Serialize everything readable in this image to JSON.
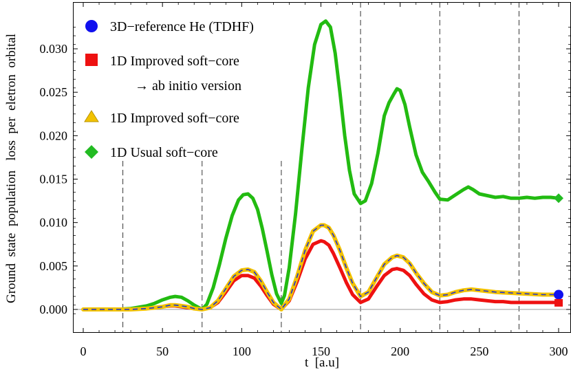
{
  "chart_data": {
    "type": "line",
    "title": "",
    "xlabel": "t  [a.u]",
    "ylabel": "Ground  state  population   loss  per  eletron  orbital",
    "xlim": [
      0,
      300
    ],
    "ylim": [
      -0.001,
      0.0335
    ],
    "x_ticks": [
      0,
      50,
      100,
      150,
      200,
      250,
      300
    ],
    "x_tick_labels": [
      "0",
      "50",
      "100",
      "150",
      "200",
      "250",
      "300"
    ],
    "y_ticks": [
      0.0,
      0.005,
      0.01,
      0.015,
      0.02,
      0.025,
      0.03
    ],
    "y_tick_labels": [
      "0.000",
      "0.005",
      "0.010",
      "0.015",
      "0.020",
      "0.025",
      "0.030"
    ],
    "vertical_dashed_lines_x": [
      25,
      75,
      125,
      175,
      225,
      275
    ],
    "legend": [
      {
        "label": "3D−reference He (TDHF)",
        "marker": "circle",
        "color": "#1010ee"
      },
      {
        "label": "1D Improved soft−core",
        "sublabel": "→ ab initio version",
        "marker": "square",
        "color": "#ee1111"
      },
      {
        "label": "1D Improved soft−core",
        "marker": "triangle",
        "color": "#f2c200"
      },
      {
        "label": "1D Usual soft−core",
        "marker": "diamond",
        "color": "#22bb22"
      }
    ],
    "series": [
      {
        "name": "1D Usual soft−core",
        "color": "#22bb11",
        "x": [
          0,
          20,
          30,
          40,
          45,
          50,
          55,
          58,
          62,
          66,
          70,
          75,
          78,
          82,
          86,
          90,
          94,
          98,
          101,
          104,
          107,
          110,
          113,
          116,
          119,
          122,
          125,
          127,
          130,
          134,
          138,
          142,
          146,
          150,
          153,
          156,
          159,
          162,
          165,
          168,
          171,
          175,
          178,
          182,
          186,
          190,
          193,
          196,
          198,
          200,
          203,
          206,
          210,
          214,
          218,
          222,
          225,
          230,
          235,
          240,
          243,
          246,
          250,
          255,
          260,
          265,
          270,
          275,
          280,
          285,
          290,
          295,
          300
        ],
        "y": [
          0,
          0,
          0.0001,
          0.0004,
          0.0007,
          0.0011,
          0.0014,
          0.0015,
          0.0014,
          0.001,
          0.0005,
          0.0,
          0.0006,
          0.0025,
          0.0052,
          0.0082,
          0.0108,
          0.0126,
          0.0132,
          0.0133,
          0.0128,
          0.0115,
          0.0093,
          0.0067,
          0.004,
          0.0018,
          0.0007,
          0.0016,
          0.0048,
          0.011,
          0.0185,
          0.0255,
          0.0305,
          0.0328,
          0.0332,
          0.0325,
          0.0295,
          0.025,
          0.02,
          0.016,
          0.0133,
          0.0122,
          0.0125,
          0.0145,
          0.018,
          0.0223,
          0.0238,
          0.0248,
          0.0254,
          0.0252,
          0.0236,
          0.021,
          0.0178,
          0.0158,
          0.0147,
          0.0135,
          0.0127,
          0.0126,
          0.0132,
          0.0138,
          0.0141,
          0.0138,
          0.0133,
          0.0131,
          0.0129,
          0.013,
          0.0128,
          0.0128,
          0.0129,
          0.0128,
          0.0129,
          0.0129,
          0.0128
        ]
      },
      {
        "name": "1D Improved soft−core",
        "color": "#f2c200",
        "x": [
          0,
          20,
          30,
          40,
          45,
          50,
          55,
          58,
          62,
          66,
          70,
          75,
          80,
          85,
          90,
          95,
          100,
          104,
          108,
          112,
          116,
          120,
          125,
          130,
          135,
          140,
          145,
          150,
          152,
          155,
          158,
          162,
          166,
          170,
          175,
          180,
          185,
          190,
          195,
          198,
          202,
          206,
          210,
          215,
          220,
          225,
          230,
          235,
          240,
          245,
          250,
          255,
          260,
          270,
          280,
          290,
          300
        ],
        "y": [
          0,
          0,
          0,
          0.0001,
          0.0002,
          0.0003,
          0.0005,
          0.0005,
          0.0004,
          0.0003,
          0.0001,
          0.0,
          0.0002,
          0.001,
          0.0024,
          0.0038,
          0.0045,
          0.0046,
          0.0043,
          0.0033,
          0.002,
          0.0008,
          0.0,
          0.0012,
          0.0038,
          0.0068,
          0.009,
          0.0097,
          0.0097,
          0.0094,
          0.0085,
          0.0068,
          0.0048,
          0.003,
          0.0015,
          0.002,
          0.0036,
          0.0052,
          0.006,
          0.0062,
          0.006,
          0.0053,
          0.0042,
          0.003,
          0.002,
          0.0016,
          0.0017,
          0.002,
          0.0022,
          0.0023,
          0.0022,
          0.0021,
          0.002,
          0.0019,
          0.0018,
          0.0017,
          0.0017
        ]
      },
      {
        "name": "3D−reference He (TDHF)",
        "color": "#1a2fd8",
        "x": [
          0,
          20,
          30,
          40,
          45,
          50,
          55,
          58,
          62,
          66,
          70,
          75,
          80,
          85,
          90,
          95,
          100,
          104,
          108,
          112,
          116,
          120,
          125,
          130,
          135,
          140,
          145,
          150,
          152,
          155,
          158,
          162,
          166,
          170,
          175,
          180,
          185,
          190,
          195,
          198,
          202,
          206,
          210,
          215,
          220,
          225,
          230,
          235,
          240,
          245,
          250,
          255,
          260,
          270,
          280,
          290,
          300
        ],
        "y": [
          0,
          0,
          0,
          0.0001,
          0.0002,
          0.0003,
          0.0005,
          0.0005,
          0.0004,
          0.0003,
          0.0001,
          0.0,
          0.0002,
          0.001,
          0.0024,
          0.0038,
          0.0045,
          0.0046,
          0.0043,
          0.0033,
          0.002,
          0.0008,
          0.0,
          0.0012,
          0.0038,
          0.0068,
          0.009,
          0.0097,
          0.0097,
          0.0094,
          0.0085,
          0.0068,
          0.0048,
          0.003,
          0.0015,
          0.002,
          0.0036,
          0.0052,
          0.006,
          0.0062,
          0.006,
          0.0053,
          0.0042,
          0.003,
          0.002,
          0.0016,
          0.0017,
          0.002,
          0.0022,
          0.0023,
          0.0022,
          0.0021,
          0.002,
          0.0019,
          0.0018,
          0.0017,
          0.0017
        ]
      },
      {
        "name": "1D Improved soft−core → ab initio version",
        "color": "#ee1111",
        "x": [
          0,
          20,
          30,
          40,
          45,
          50,
          55,
          58,
          62,
          66,
          70,
          75,
          80,
          85,
          90,
          95,
          100,
          104,
          108,
          112,
          116,
          120,
          125,
          130,
          135,
          140,
          145,
          150,
          152,
          155,
          158,
          162,
          166,
          170,
          175,
          180,
          185,
          190,
          195,
          198,
          202,
          206,
          210,
          215,
          220,
          225,
          230,
          235,
          240,
          245,
          250,
          255,
          260,
          265,
          270,
          280,
          290,
          300
        ],
        "y": [
          0,
          0,
          0,
          0.0001,
          0.0002,
          0.0003,
          0.0004,
          0.0004,
          0.0003,
          0.0002,
          0.0001,
          0.0,
          0.0002,
          0.0008,
          0.002,
          0.0033,
          0.0039,
          0.0039,
          0.0036,
          0.0027,
          0.0016,
          0.0006,
          0.0,
          0.001,
          0.0032,
          0.0058,
          0.0075,
          0.0079,
          0.0078,
          0.0074,
          0.0064,
          0.0048,
          0.0031,
          0.0017,
          0.0008,
          0.0012,
          0.0026,
          0.0039,
          0.0046,
          0.0047,
          0.0045,
          0.0039,
          0.0029,
          0.0018,
          0.0011,
          0.0008,
          0.0009,
          0.0011,
          0.0012,
          0.0012,
          0.0011,
          0.001,
          0.0009,
          0.0009,
          0.0008,
          0.0008,
          0.0008,
          0.0008
        ]
      }
    ],
    "end_markers": [
      {
        "series": "3D−reference He (TDHF)",
        "x": 300,
        "y": 0.0017,
        "marker": "circle",
        "color": "#1010ee"
      },
      {
        "series": "1D Improved soft−core → ab initio version",
        "x": 300,
        "y": 0.0008,
        "marker": "square",
        "color": "#ee1111"
      },
      {
        "series": "1D Usual soft−core",
        "x": 300,
        "y": 0.0128,
        "marker": "diamond",
        "color": "#22bb22"
      }
    ]
  }
}
